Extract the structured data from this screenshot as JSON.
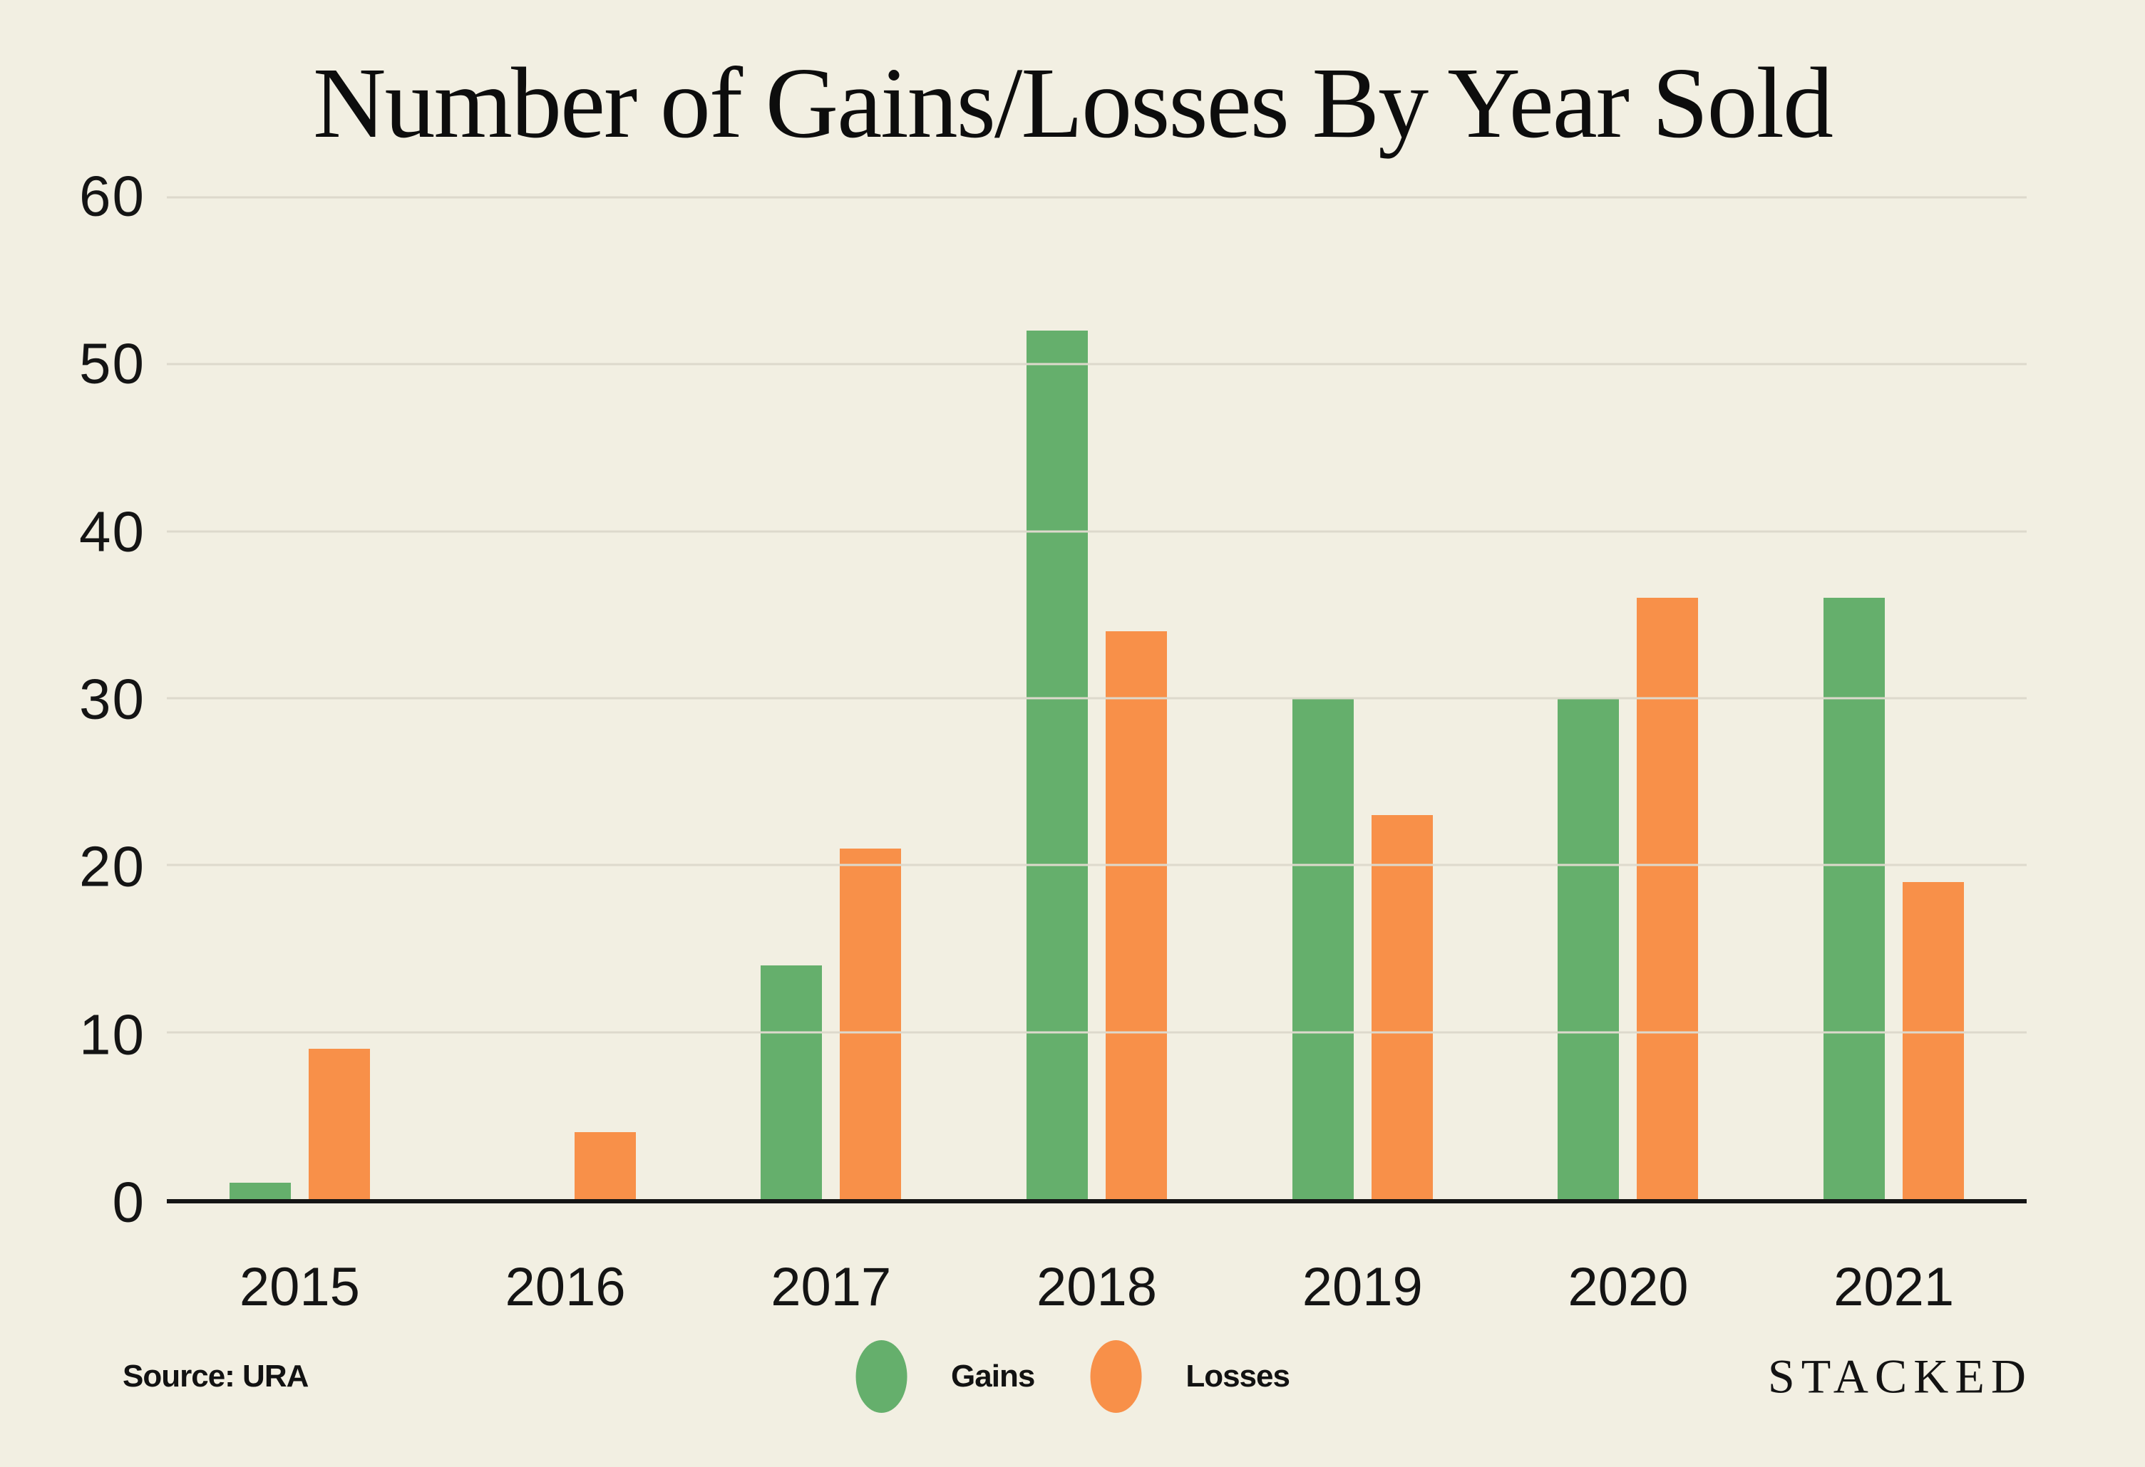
{
  "page": {
    "background": "#f2efe2"
  },
  "chart": {
    "title": "Number of Gains/Losses By Year Sold"
  },
  "chart_data": {
    "type": "bar",
    "title": "Number of Gains/Losses By Year Sold",
    "categories": [
      "2015",
      "2016",
      "2017",
      "2018",
      "2019",
      "2020",
      "2021"
    ],
    "series": [
      {
        "name": "Gains",
        "color": "#65af6c",
        "values": [
          1,
          0,
          14,
          52,
          30,
          30,
          36
        ]
      },
      {
        "name": "Losses",
        "color": "#f89049",
        "values": [
          9,
          4,
          21,
          34,
          23,
          36,
          19
        ]
      }
    ],
    "xlabel": "",
    "ylabel": "",
    "ylim": [
      0,
      60
    ],
    "yticks": [
      0,
      10,
      20,
      30,
      40,
      50,
      60
    ],
    "grid": true,
    "gridline_color": "#ddd9cc",
    "axis_color": "#151515",
    "legend_position": "bottom-center"
  },
  "footer": {
    "source": "Source: URA",
    "brand": "STACKED",
    "legend": [
      {
        "label": "Gains",
        "color": "#65af6c"
      },
      {
        "label": "Losses",
        "color": "#f89049"
      }
    ]
  }
}
